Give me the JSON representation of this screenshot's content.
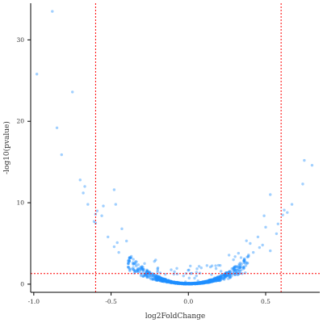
{
  "chart_data": {
    "type": "scatter",
    "title": "",
    "xlabel": "log2FoldChange",
    "ylabel": "-log10(pvalue)",
    "xlim": [
      -1.02,
      0.85
    ],
    "ylim": [
      -1,
      34.5
    ],
    "xticks": [
      -1.0,
      -0.5,
      0.0,
      0.5
    ],
    "xtick_labels": [
      "-1.0",
      "-0.5",
      "0.0",
      "0.5"
    ],
    "yticks": [
      0,
      10,
      20,
      30
    ],
    "ytick_labels": [
      "0",
      "10",
      "20",
      "30"
    ],
    "grid": false,
    "legend": "none",
    "point_color": "#1E90FF",
    "threshold_color": "#FF0000",
    "thresholds": {
      "x_left": -0.6,
      "x_right": 0.6,
      "y": 1.3
    },
    "points": [
      [
        -0.88,
        33.5
      ],
      [
        -0.98,
        25.8
      ],
      [
        -0.75,
        23.6
      ],
      [
        -0.85,
        19.2
      ],
      [
        -0.82,
        15.9
      ],
      [
        -0.7,
        12.8
      ],
      [
        -0.67,
        12.0
      ],
      [
        -0.68,
        11.2
      ],
      [
        -0.48,
        11.6
      ],
      [
        -0.47,
        9.8
      ],
      [
        -0.65,
        9.8
      ],
      [
        -0.55,
        9.6
      ],
      [
        -0.59,
        9.0
      ],
      [
        -0.6,
        8.6
      ],
      [
        -0.56,
        8.4
      ],
      [
        -0.61,
        7.7
      ],
      [
        -0.6,
        7.5
      ],
      [
        -0.43,
        6.8
      ],
      [
        -0.52,
        5.8
      ],
      [
        -0.46,
        5.1
      ],
      [
        -0.48,
        4.6
      ],
      [
        -0.4,
        5.3
      ],
      [
        -0.45,
        3.9
      ],
      [
        0.75,
        15.2
      ],
      [
        0.8,
        14.6
      ],
      [
        0.74,
        12.3
      ],
      [
        0.53,
        11.0
      ],
      [
        0.67,
        9.8
      ],
      [
        0.62,
        9.1
      ],
      [
        0.64,
        8.8
      ],
      [
        0.61,
        8.5
      ],
      [
        0.49,
        8.4
      ],
      [
        0.58,
        7.4
      ],
      [
        0.5,
        7.0
      ],
      [
        0.57,
        6.2
      ],
      [
        0.45,
        5.8
      ],
      [
        0.48,
        4.8
      ],
      [
        0.4,
        5.0
      ],
      [
        0.46,
        4.5
      ],
      [
        0.53,
        4.1
      ],
      [
        0.42,
        3.9
      ]
    ]
  }
}
